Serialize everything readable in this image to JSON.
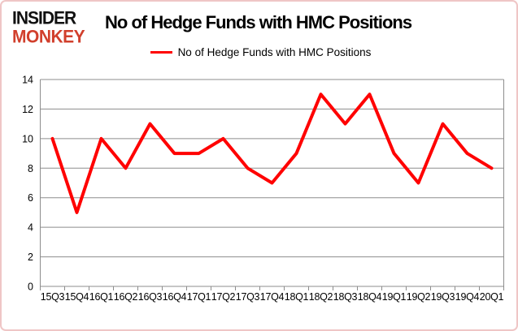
{
  "logo": {
    "line1": "INSIDER",
    "line2": "MONKEY"
  },
  "header": {
    "title": "No of Hedge Funds with HMC Positions"
  },
  "legend": {
    "label": "No of Hedge Funds with HMC Positions"
  },
  "colors": {
    "line": "#ff0000",
    "grid": "#8d8d8d",
    "axis": "#8d8d8d",
    "text": "#000000",
    "frame_border": "#efc6c6",
    "logo_black": "#111111",
    "logo_red": "#d13f2c"
  },
  "chart_data": {
    "type": "line",
    "title": "No of Hedge Funds with HMC Positions",
    "categories": [
      "15Q3",
      "15Q4",
      "16Q1",
      "16Q2",
      "16Q3",
      "16Q4",
      "17Q1",
      "17Q2",
      "17Q3",
      "17Q4",
      "18Q1",
      "18Q2",
      "18Q3",
      "18Q4",
      "19Q1",
      "19Q2",
      "19Q3",
      "19Q4",
      "20Q1"
    ],
    "series": [
      {
        "name": "No of Hedge Funds with HMC Positions",
        "color": "#ff0000",
        "values": [
          10,
          5,
          10,
          8,
          11,
          9,
          9,
          10,
          8,
          7,
          9,
          13,
          11,
          13,
          9,
          7,
          11,
          9,
          8
        ]
      }
    ],
    "ylim": [
      0,
      14
    ],
    "ytick_step": 2,
    "yticks": [
      0,
      2,
      4,
      6,
      8,
      10,
      12,
      14
    ],
    "grid": true,
    "legend_position": "top-center"
  }
}
